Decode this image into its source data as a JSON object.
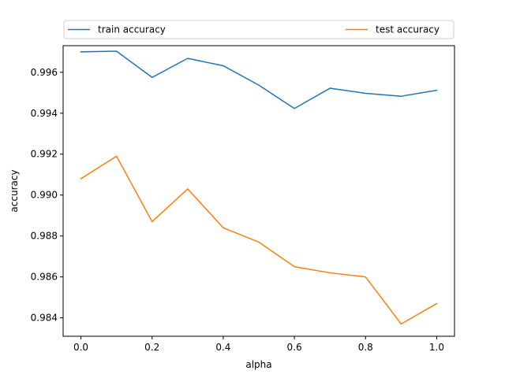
{
  "chart_data": {
    "type": "line",
    "title": "",
    "xlabel": "alpha",
    "ylabel": "accuracy",
    "xlim": [
      -0.05,
      1.05
    ],
    "ylim": [
      0.9831,
      0.9973
    ],
    "xticks": [
      0.0,
      0.2,
      0.4,
      0.6,
      0.8,
      1.0
    ],
    "xtick_labels": [
      "0.0",
      "0.2",
      "0.4",
      "0.6",
      "0.8",
      "1.0"
    ],
    "yticks": [
      0.984,
      0.986,
      0.988,
      0.99,
      0.992,
      0.994,
      0.996
    ],
    "ytick_labels": [
      "0.984",
      "0.986",
      "0.988",
      "0.990",
      "0.992",
      "0.994",
      "0.996"
    ],
    "grid": false,
    "legend_position": "top",
    "x": [
      0.0,
      0.1,
      0.2,
      0.3,
      0.4,
      0.5,
      0.6,
      0.7,
      0.8,
      0.9,
      1.0
    ],
    "series": [
      {
        "name": "train accuracy",
        "color": "#1f77b4",
        "values": [
          0.997,
          0.99703,
          0.99575,
          0.99668,
          0.99632,
          0.99537,
          0.99423,
          0.99522,
          0.99497,
          0.99483,
          0.99512
        ]
      },
      {
        "name": "test accuracy",
        "color": "#ff7f0e",
        "values": [
          0.9908,
          0.9919,
          0.9887,
          0.9903,
          0.9884,
          0.9877,
          0.9865,
          0.9862,
          0.986,
          0.9837,
          0.9847
        ]
      }
    ]
  }
}
